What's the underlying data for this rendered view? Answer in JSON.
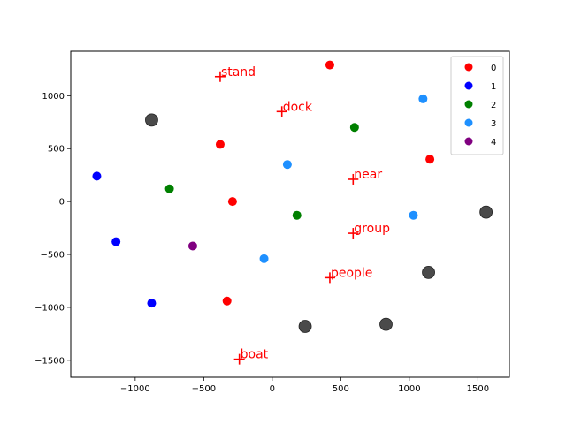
{
  "chart_data": {
    "type": "scatter",
    "xlim": [
      -1470,
      1730
    ],
    "ylim": [
      -1660,
      1420
    ],
    "x_ticks": [
      -1000,
      -500,
      0,
      500,
      1000,
      1500
    ],
    "y_ticks": [
      -1500,
      -1000,
      -500,
      0,
      500,
      1000
    ],
    "x_tick_labels": [
      "−1000",
      "−500",
      "0",
      "500",
      "1000",
      "1500"
    ],
    "y_tick_labels": [
      "−1500",
      "−1000",
      "−500",
      "0",
      "500",
      "1000"
    ],
    "grid": false,
    "legend_position": "top-right",
    "series": [
      {
        "name": "0",
        "color": "#ff0000",
        "points": [
          [
            420,
            1290
          ],
          [
            -380,
            540
          ],
          [
            -290,
            0
          ],
          [
            -330,
            -940
          ],
          [
            1150,
            400
          ]
        ]
      },
      {
        "name": "1",
        "color": "#0000ff",
        "points": [
          [
            -1280,
            240
          ],
          [
            -1140,
            -380
          ],
          [
            -880,
            -960
          ]
        ]
      },
      {
        "name": "2",
        "color": "#008000",
        "points": [
          [
            600,
            700
          ],
          [
            -750,
            120
          ],
          [
            180,
            -130
          ]
        ]
      },
      {
        "name": "3",
        "color": "#1e90ff",
        "points": [
          [
            1100,
            970
          ],
          [
            110,
            350
          ],
          [
            1030,
            -130
          ],
          [
            -60,
            -540
          ]
        ]
      },
      {
        "name": "4",
        "color": "#800080",
        "points": [
          [
            -580,
            -420
          ]
        ]
      }
    ],
    "gray_points": {
      "color": "#404040",
      "points": [
        [
          -880,
          770
        ],
        [
          1560,
          -100
        ],
        [
          1140,
          -670
        ],
        [
          240,
          -1180
        ],
        [
          830,
          -1160
        ]
      ]
    },
    "word_markers": [
      {
        "label": "stand",
        "x": -380,
        "y": 1180
      },
      {
        "label": "dock",
        "x": 70,
        "y": 850
      },
      {
        "label": "near",
        "x": 590,
        "y": 210
      },
      {
        "label": "group",
        "x": 590,
        "y": -300
      },
      {
        "label": "people",
        "x": 420,
        "y": -720
      },
      {
        "label": "boat",
        "x": -240,
        "y": -1490
      }
    ]
  }
}
